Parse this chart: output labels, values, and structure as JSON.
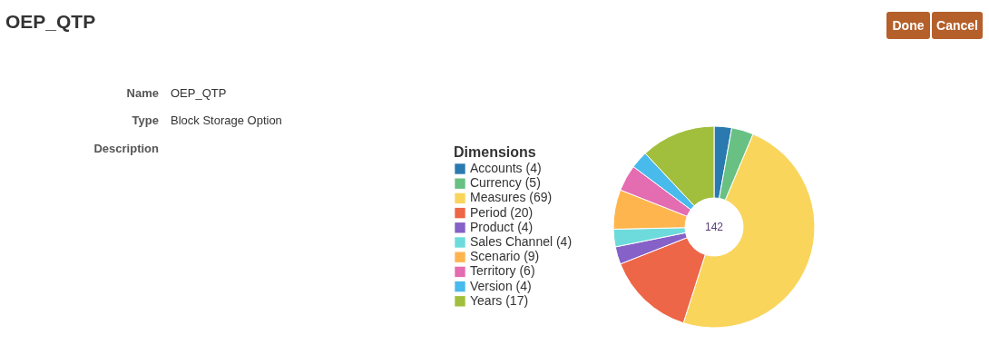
{
  "chart_data": {
    "type": "donut",
    "title": "OEP_QTP",
    "legend_title": "Dimensions",
    "legend": "left",
    "categories": [
      "Accounts (4)",
      "Currency (5)",
      "Measures (69)",
      "Period (20)",
      "Product (4)",
      "Sales Channel (4)",
      "Scenario (9)",
      "Territory (6)",
      "Version (4)",
      "Years (17)"
    ],
    "values": [
      4,
      5,
      69,
      20,
      4,
      4,
      9,
      6,
      4,
      17
    ],
    "colors": [
      "#2a7ab0",
      "#68c182",
      "#fad55c",
      "#ed6647",
      "#8561c8",
      "#6ddbdb",
      "#ffb54d",
      "#e46cb0",
      "#48baec",
      "#a1bf3c"
    ],
    "annotations": [
      "Name",
      "OEP_QTP",
      "Type",
      "Block Storage Option",
      "Description",
      "Done",
      "Cancel",
      "142"
    ]
  }
}
